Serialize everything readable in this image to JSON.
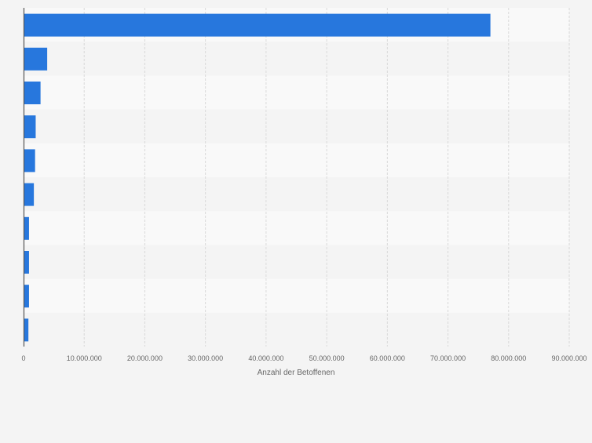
{
  "chart_data": {
    "type": "bar",
    "orientation": "horizontal",
    "categories": [
      "",
      "",
      "",
      "",
      "",
      "",
      "",
      "",
      "",
      ""
    ],
    "values": [
      77000000,
      3900000,
      2800000,
      2000000,
      1900000,
      1700000,
      900000,
      900000,
      900000,
      800000
    ],
    "xlabel": "Anzahl der Betoffenen",
    "ylabel": "",
    "xlim": [
      0,
      90000000
    ],
    "ticks": [
      0,
      10000000,
      20000000,
      30000000,
      40000000,
      50000000,
      60000000,
      70000000,
      80000000,
      90000000
    ],
    "tick_labels": [
      "0",
      "10.000.000",
      "20.000.000",
      "30.000.000",
      "40.000.000",
      "50.000.000",
      "60.000.000",
      "70.000.000",
      "80.000.000",
      "90.000.000"
    ],
    "grid": true,
    "bar_color": "#2777dd",
    "grid_color": "#d9d9d9",
    "band_colors": [
      "#f9f9f9",
      "#f4f4f4"
    ]
  }
}
